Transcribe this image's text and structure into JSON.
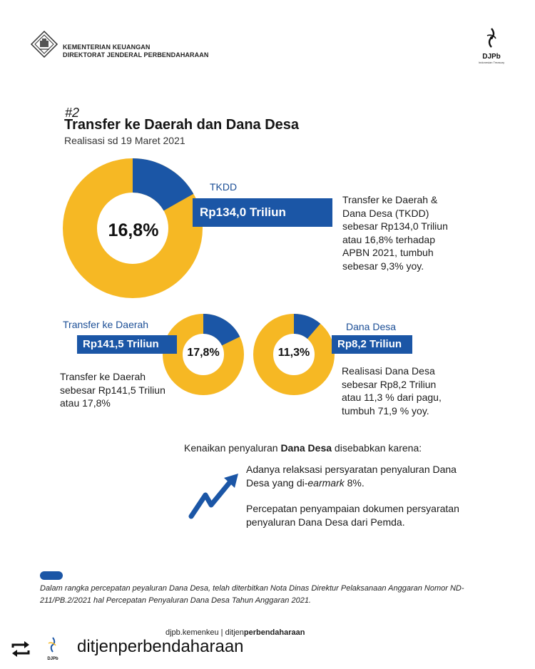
{
  "header": {
    "ministry_line1": "KEMENTERIAN KEUANGAN",
    "ministry_line2": "DIREKTORAT JENDERAL PERBENDAHARAAN",
    "djpb_name": "DJPb",
    "djpb_sub": "Indonesian Treasury"
  },
  "title": {
    "number": "#2",
    "main": "Transfer ke Daerah dan Dana Desa",
    "subtitle": "Realisasi sd 19 Maret 2021"
  },
  "tkdd": {
    "percent_label": "16,8%",
    "percent_value": 16.8,
    "tag": "TKDD",
    "amount": "Rp134,0 Triliun",
    "desc_lines": [
      "Transfer ke Daerah &",
      "Dana Desa (TKDD)",
      "sebesar Rp134,0 Triliun",
      "atau 16,8% terhadap",
      "APBN 2021, tumbuh",
      "sebesar 9,3% yoy."
    ]
  },
  "transfer_daerah": {
    "percent_label": "17,8%",
    "percent_value": 17.8,
    "tag": "Transfer ke Daerah",
    "amount": "Rp141,5 Triliun",
    "desc_lines": [
      "Transfer ke Daerah",
      "sebesar Rp141,5 Triliun",
      "atau 17,8%"
    ]
  },
  "dana_desa": {
    "percent_label": "11,3%",
    "percent_value": 11.3,
    "tag": "Dana Desa",
    "amount": "Rp8,2 Triliun",
    "desc_lines": [
      "Realisasi Dana Desa",
      "sebesar Rp8,2 Triliun",
      "atau 11,3 % dari pagu,",
      "tumbuh 71,9 % yoy."
    ]
  },
  "reasons": {
    "title_pre": "Kenaikan penyaluran ",
    "title_bold": "Dana Desa",
    "title_post": " disebabkan karena:",
    "r1_pre": "Adanya relaksasi persyaratan penyaluran Dana Desa yang di-",
    "r1_italic": "earmark",
    "r1_post": " 8%.",
    "r2": "Percepatan penyampaian dokumen persyaratan penyaluran Dana Desa dari Pemda."
  },
  "footnote": {
    "text": "Dalam rangka percepatan peyaluran Dana Desa, telah diterbitkan Nota Dinas Direktur Pelaksanaan Anggaran Nomor ND-211/PB.2/2021 hal Percepatan Penyaluran Dana Desa Tahun Anggaran 2021."
  },
  "social": {
    "cut_text_pre": "djpb.kemenkeu | ",
    "cut_text_mid": "ditjen",
    "cut_text_bold": "perbendaharaan",
    "repost_handle": "ditjenperbendaharaan",
    "avatar_label": "DJPb"
  },
  "colors": {
    "yellow": "#f6b824",
    "blue": "#1b56a6"
  }
}
